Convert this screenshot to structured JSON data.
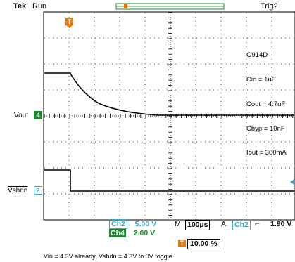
{
  "header": {
    "brand": "Tek",
    "state": "Run",
    "trigger_status": "Trig?"
  },
  "annotation": {
    "lines": [
      "G914D",
      "Cin = 1uF",
      "Cout = 4.7uF",
      "Cbyp = 10nF",
      "Iout = 300mA"
    ]
  },
  "channels": [
    {
      "id": "ch4",
      "number": "4",
      "label": "Vout",
      "color": "#1a8a2a"
    },
    {
      "id": "ch2",
      "number": "2",
      "label": "Vshdn",
      "color": "#3aa7c6"
    }
  ],
  "marker": {
    "label": "T",
    "color": "#f07800"
  },
  "readouts": {
    "ch2": {
      "name": "Ch2",
      "scale": "5.00 V"
    },
    "ch4": {
      "name": "Ch4",
      "scale": "2.00 V"
    },
    "coupling": "M",
    "timebase": "100µs",
    "trigger_mode": "A",
    "trigger_source": "Ch2",
    "trigger_level": "1.90 V",
    "trigger_position": "10.00 %"
  },
  "caption": "Vin = 4.3V already, Vshdn = 4.3V to 0V toggle"
}
